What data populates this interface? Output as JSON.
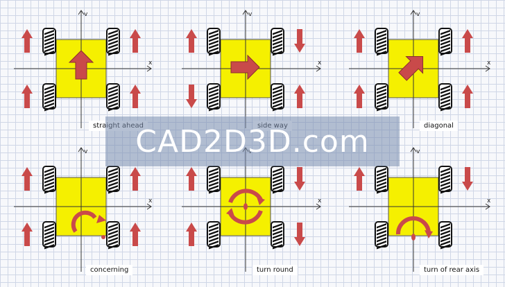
{
  "panels": [
    {
      "caption": "straight ahead",
      "motion": "straight",
      "wheel_arrows": [
        "up",
        "up",
        "up",
        "up"
      ]
    },
    {
      "caption": "side way",
      "motion": "side",
      "wheel_arrows": [
        "up",
        "down",
        "down",
        "up"
      ]
    },
    {
      "caption": "diagonal",
      "motion": "diagonal",
      "wheel_arrows": [
        "up",
        "up",
        "up",
        "up"
      ]
    },
    {
      "caption": "concerning",
      "motion": "concerning",
      "wheel_arrows": [
        "up",
        "up",
        "up",
        "up"
      ]
    },
    {
      "caption": "turn round",
      "motion": "turn-round",
      "wheel_arrows": [
        "up",
        "down",
        "up",
        "down"
      ]
    },
    {
      "caption": "turn of rear axis",
      "motion": "rear-axis",
      "wheel_arrows": [
        "up",
        "down",
        "none",
        "none"
      ]
    }
  ],
  "axis_labels": {
    "x": "x",
    "y": "v"
  },
  "watermark": "CAD2D3D.com",
  "colors": {
    "body": "#f5f000",
    "arrow": "#c94a4a",
    "wheel": "#111111",
    "axis": "#333333"
  }
}
